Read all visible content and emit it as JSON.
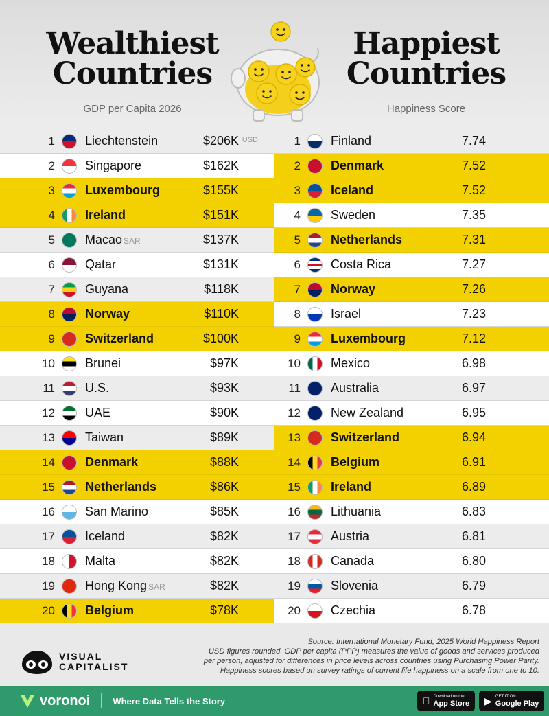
{
  "header": {
    "left_title_line1": "Wealthiest",
    "left_title_line2": "Countries",
    "left_subtitle": "GDP per Capita 2026",
    "right_title_line1": "Happiest",
    "right_title_line2": "Countries",
    "right_subtitle": "Happiness Score"
  },
  "colors": {
    "highlight": "#f3d000",
    "accent_green": "#2f9a6c"
  },
  "chart_data": [
    {
      "type": "table",
      "title": "Wealthiest Countries",
      "subtitle": "GDP per Capita 2026",
      "unit_note": "USD",
      "rows": [
        {
          "rank": "1",
          "country": "Liechtenstein",
          "suffix": "",
          "value": "$206K",
          "highlight": false,
          "flag": [
            "#002b7f",
            "#ce1126"
          ]
        },
        {
          "rank": "2",
          "country": "Singapore",
          "suffix": "",
          "value": "$162K",
          "highlight": false,
          "flag": [
            "#ef3340",
            "#ffffff"
          ]
        },
        {
          "rank": "3",
          "country": "Luxembourg",
          "suffix": "",
          "value": "$155K",
          "highlight": true,
          "flag": [
            "#ed2939",
            "#ffffff",
            "#00a1de"
          ]
        },
        {
          "rank": "4",
          "country": "Ireland",
          "suffix": "",
          "value": "$151K",
          "highlight": true,
          "flag": [
            "#169b62",
            "#ffffff",
            "#ff883e"
          ],
          "vertical": true
        },
        {
          "rank": "5",
          "country": "Macao",
          "suffix": "SAR",
          "value": "$137K",
          "highlight": false,
          "flag": [
            "#00785e"
          ]
        },
        {
          "rank": "6",
          "country": "Qatar",
          "suffix": "",
          "value": "$131K",
          "highlight": false,
          "flag": [
            "#8a1538",
            "#ffffff"
          ]
        },
        {
          "rank": "7",
          "country": "Guyana",
          "suffix": "",
          "value": "$118K",
          "highlight": false,
          "flag": [
            "#009e49",
            "#fcd116",
            "#ce1126"
          ]
        },
        {
          "rank": "8",
          "country": "Norway",
          "suffix": "",
          "value": "$110K",
          "highlight": true,
          "flag": [
            "#ba0c2f",
            "#00205b"
          ]
        },
        {
          "rank": "9",
          "country": "Switzerland",
          "suffix": "",
          "value": "$100K",
          "highlight": true,
          "flag": [
            "#d52b1e"
          ]
        },
        {
          "rank": "10",
          "country": "Brunei",
          "suffix": "",
          "value": "$97K",
          "highlight": false,
          "flag": [
            "#f7e017",
            "#000000",
            "#ffffff"
          ]
        },
        {
          "rank": "11",
          "country": "U.S.",
          "suffix": "",
          "value": "$93K",
          "highlight": false,
          "flag": [
            "#b22234",
            "#ffffff",
            "#3c3b6e"
          ]
        },
        {
          "rank": "12",
          "country": "UAE",
          "suffix": "",
          "value": "$90K",
          "highlight": false,
          "flag": [
            "#00732f",
            "#ffffff",
            "#000000"
          ]
        },
        {
          "rank": "13",
          "country": "Taiwan",
          "suffix": "",
          "value": "$89K",
          "highlight": false,
          "flag": [
            "#fe0000",
            "#000095"
          ]
        },
        {
          "rank": "14",
          "country": "Denmark",
          "suffix": "",
          "value": "$88K",
          "highlight": true,
          "flag": [
            "#c8102e"
          ]
        },
        {
          "rank": "15",
          "country": "Netherlands",
          "suffix": "",
          "value": "$86K",
          "highlight": true,
          "flag": [
            "#ae1c28",
            "#ffffff",
            "#21468b"
          ]
        },
        {
          "rank": "16",
          "country": "San Marino",
          "suffix": "",
          "value": "$85K",
          "highlight": false,
          "flag": [
            "#ffffff",
            "#5eb6e4"
          ]
        },
        {
          "rank": "17",
          "country": "Iceland",
          "suffix": "",
          "value": "$82K",
          "highlight": false,
          "flag": [
            "#02529c",
            "#dc1e35"
          ]
        },
        {
          "rank": "18",
          "country": "Malta",
          "suffix": "",
          "value": "$82K",
          "highlight": false,
          "flag": [
            "#ffffff",
            "#cf142b"
          ],
          "vertical": true
        },
        {
          "rank": "19",
          "country": "Hong Kong",
          "suffix": "SAR",
          "value": "$82K",
          "highlight": false,
          "flag": [
            "#de2910"
          ]
        },
        {
          "rank": "20",
          "country": "Belgium",
          "suffix": "",
          "value": "$78K",
          "highlight": true,
          "flag": [
            "#000000",
            "#fdda24",
            "#ef3340"
          ],
          "vertical": true
        }
      ]
    },
    {
      "type": "table",
      "title": "Happiest Countries",
      "subtitle": "Happiness Score",
      "rows": [
        {
          "rank": "1",
          "country": "Finland",
          "value": "7.74",
          "highlight": false,
          "flag": [
            "#ffffff",
            "#002f6c"
          ]
        },
        {
          "rank": "2",
          "country": "Denmark",
          "value": "7.52",
          "highlight": true,
          "flag": [
            "#c8102e"
          ]
        },
        {
          "rank": "3",
          "country": "Iceland",
          "value": "7.52",
          "highlight": true,
          "flag": [
            "#02529c",
            "#dc1e35"
          ]
        },
        {
          "rank": "4",
          "country": "Sweden",
          "value": "7.35",
          "highlight": false,
          "flag": [
            "#006aa7",
            "#fecc00"
          ]
        },
        {
          "rank": "5",
          "country": "Netherlands",
          "value": "7.31",
          "highlight": true,
          "flag": [
            "#ae1c28",
            "#ffffff",
            "#21468b"
          ]
        },
        {
          "rank": "6",
          "country": "Costa Rica",
          "value": "7.27",
          "highlight": false,
          "flag": [
            "#002b7f",
            "#ffffff",
            "#ce1126",
            "#ffffff",
            "#002b7f"
          ]
        },
        {
          "rank": "7",
          "country": "Norway",
          "value": "7.26",
          "highlight": true,
          "flag": [
            "#ba0c2f",
            "#00205b"
          ]
        },
        {
          "rank": "8",
          "country": "Israel",
          "value": "7.23",
          "highlight": false,
          "flag": [
            "#ffffff",
            "#0038b8"
          ]
        },
        {
          "rank": "9",
          "country": "Luxembourg",
          "value": "7.12",
          "highlight": true,
          "flag": [
            "#ed2939",
            "#ffffff",
            "#00a1de"
          ]
        },
        {
          "rank": "10",
          "country": "Mexico",
          "value": "6.98",
          "highlight": false,
          "flag": [
            "#006847",
            "#ffffff",
            "#ce1126"
          ],
          "vertical": true
        },
        {
          "rank": "11",
          "country": "Australia",
          "value": "6.97",
          "highlight": false,
          "flag": [
            "#012169"
          ]
        },
        {
          "rank": "12",
          "country": "New Zealand",
          "value": "6.95",
          "highlight": false,
          "flag": [
            "#012169"
          ]
        },
        {
          "rank": "13",
          "country": "Switzerland",
          "value": "6.94",
          "highlight": true,
          "flag": [
            "#d52b1e"
          ]
        },
        {
          "rank": "14",
          "country": "Belgium",
          "value": "6.91",
          "highlight": true,
          "flag": [
            "#000000",
            "#fdda24",
            "#ef3340"
          ],
          "vertical": true
        },
        {
          "rank": "15",
          "country": "Ireland",
          "value": "6.89",
          "highlight": true,
          "flag": [
            "#169b62",
            "#ffffff",
            "#ff883e"
          ],
          "vertical": true
        },
        {
          "rank": "16",
          "country": "Lithuania",
          "value": "6.83",
          "highlight": false,
          "flag": [
            "#fdb913",
            "#006a44",
            "#c1272d"
          ]
        },
        {
          "rank": "17",
          "country": "Austria",
          "value": "6.81",
          "highlight": false,
          "flag": [
            "#ed2939",
            "#ffffff",
            "#ed2939"
          ]
        },
        {
          "rank": "18",
          "country": "Canada",
          "value": "6.80",
          "highlight": false,
          "flag": [
            "#d52b1e",
            "#ffffff",
            "#d52b1e"
          ],
          "vertical": true
        },
        {
          "rank": "19",
          "country": "Slovenia",
          "value": "6.79",
          "highlight": false,
          "flag": [
            "#ffffff",
            "#005da4",
            "#ed1c24"
          ]
        },
        {
          "rank": "20",
          "country": "Czechia",
          "value": "6.78",
          "highlight": false,
          "flag": [
            "#ffffff",
            "#d7141a"
          ]
        }
      ]
    }
  ],
  "footer": {
    "source": "Source: International Monetary Fund, 2025 World Happiness Report",
    "note1": "USD figures rounded. GDP per capita (PPP) measures the value of goods and services produced",
    "note2": "per person, adjusted for differences in price levels across countries using Purchasing Power Parity.",
    "note3": "Happiness scores based on survey ratings of current life happiness on a scale from one to 10.",
    "vc_line1": "VISUAL",
    "vc_line2": "CAPITALIST"
  },
  "bottom_bar": {
    "brand": "voronoi",
    "tagline": "Where Data Tells the Story",
    "app_store_small": "Download on the",
    "app_store_big": "App Store",
    "google_small": "GET IT ON",
    "google_big": "Google Play"
  }
}
